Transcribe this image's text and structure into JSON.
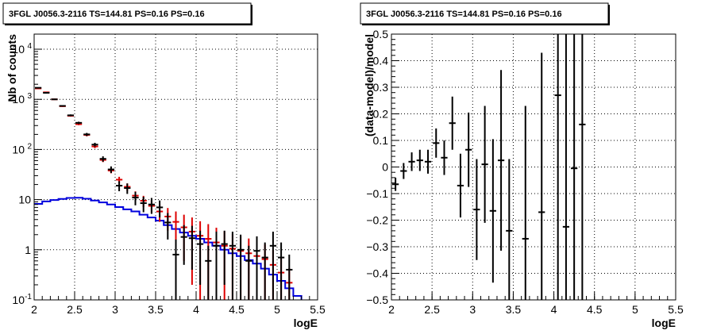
{
  "chart_data": [
    {
      "type": "histogram",
      "title": "3FGL J0056.3-2116 TS=144.81 PS=0.16 PS=0.16",
      "xlabel": "logE",
      "ylabel": "Nb of counts",
      "xlim": [
        2,
        5.5
      ],
      "ylim": [
        0.1,
        20000
      ],
      "y_scale": "log",
      "grid": true,
      "x_ticks": [
        "2",
        "2.5",
        "3",
        "3.5",
        "4",
        "4.5",
        "5",
        "5.5"
      ],
      "y_ticks": [
        {
          "value": 0.1,
          "label": "10",
          "sup": "-1"
        },
        {
          "value": 1,
          "label": "1",
          "sup": ""
        },
        {
          "value": 10,
          "label": "10",
          "sup": ""
        },
        {
          "value": 100,
          "label": "10",
          "sup": "2"
        },
        {
          "value": 1000,
          "label": "10",
          "sup": "3"
        },
        {
          "value": 10000,
          "label": "10",
          "sup": "4"
        }
      ],
      "bin_width": 0.1,
      "series": [
        {
          "role": "data",
          "color": "#000000",
          "x": [
            2.05,
            2.15,
            2.25,
            2.35,
            2.45,
            2.55,
            2.65,
            2.75,
            2.85,
            2.95,
            3.05,
            3.15,
            3.25,
            3.35,
            3.45,
            3.55,
            3.65,
            3.75,
            3.85,
            3.95,
            4.05,
            4.15,
            4.25,
            4.35,
            4.45,
            4.55,
            4.65,
            4.75,
            4.85,
            4.95,
            5.05,
            5.15
          ],
          "y": [
            1700,
            1350,
            1000,
            740,
            480,
            340,
            200,
            125,
            65,
            40,
            19,
            17,
            11,
            8.5,
            8,
            7,
            3.5,
            0.8,
            1.8,
            1.7,
            1.3,
            0.6,
            1.2,
            1.3,
            1.2,
            1.0,
            0.6,
            0.95,
            0.7,
            1.2,
            0.7,
            0.4
          ],
          "yerr_lo": [
            40,
            35,
            30,
            25,
            20,
            18,
            14,
            11,
            8,
            6,
            4.3,
            4,
            3.3,
            2.9,
            2.8,
            2.6,
            1.9,
            0.8,
            1.3,
            1.3,
            1.1,
            0.6,
            1.1,
            1.1,
            1.1,
            1.0,
            0.6,
            0.9,
            0.7,
            1.1,
            0.7,
            0.4
          ],
          "yerr_hi": [
            40,
            35,
            30,
            25,
            20,
            18,
            14,
            11,
            8,
            6,
            4.3,
            4,
            3.3,
            2.9,
            2.8,
            2.6,
            1.9,
            0.8,
            1.3,
            1.3,
            1.1,
            0.6,
            1.1,
            1.1,
            1.1,
            1.0,
            0.6,
            0.9,
            0.7,
            1.1,
            0.7,
            0.4
          ]
        },
        {
          "role": "model-total",
          "color": "#dd0000",
          "x": [
            2.05,
            2.15,
            2.25,
            2.35,
            2.45,
            2.55,
            2.65,
            2.75,
            2.85,
            2.95,
            3.05,
            3.15,
            3.25,
            3.35,
            3.45,
            3.55,
            3.65,
            3.75,
            3.85,
            3.95,
            4.05,
            4.15,
            4.25,
            4.35,
            4.45,
            4.55,
            4.65,
            4.75,
            4.85,
            4.95,
            5.05,
            5.15
          ],
          "y": [
            1650,
            1380,
            1000,
            730,
            470,
            320,
            195,
            115,
            62,
            38,
            25,
            18,
            12,
            9.5,
            7.5,
            5.8,
            4.6,
            3.6,
            2.8,
            2.3,
            1.9,
            1.65,
            1.4,
            1.2,
            1.05,
            0.95,
            0.85,
            0.75,
            0.65,
            0.5,
            0.35,
            0.22
          ],
          "yerr_lo": [
            35,
            30,
            25,
            22,
            18,
            15,
            12,
            9,
            6,
            4.5,
            3.5,
            3,
            2.6,
            2.4,
            2.2,
            2.2,
            2.2,
            2.2,
            2.2,
            2.1,
            1.8,
            1.6,
            1.35,
            1.15,
            1.0,
            0.92,
            0.83,
            0.73,
            0.64,
            0.49,
            0.34,
            0.21
          ],
          "yerr_hi": [
            35,
            30,
            25,
            22,
            18,
            15,
            12,
            9,
            6,
            4.5,
            3.5,
            3,
            2.6,
            2.4,
            2.2,
            2.2,
            2.2,
            2.2,
            2.2,
            2.1,
            1.8,
            1.6,
            1.35,
            1.15,
            1.0,
            0.92,
            0.83,
            0.73,
            0.64,
            0.49,
            0.34,
            0.21
          ]
        },
        {
          "role": "model-source",
          "color": "#0000dd",
          "x": [
            2.05,
            2.15,
            2.25,
            2.35,
            2.45,
            2.55,
            2.65,
            2.75,
            2.85,
            2.95,
            3.05,
            3.15,
            3.25,
            3.35,
            3.45,
            3.55,
            3.65,
            3.75,
            3.85,
            3.95,
            4.05,
            4.15,
            4.25,
            4.35,
            4.45,
            4.55,
            4.65,
            4.75,
            4.85,
            4.95,
            5.05,
            5.15,
            5.25
          ],
          "y": [
            8.2,
            9.2,
            9.8,
            10.3,
            10.8,
            10.9,
            10.4,
            9.6,
            8.8,
            8.0,
            7.1,
            6.4,
            5.8,
            5.0,
            4.4,
            3.8,
            3.1,
            2.6,
            2.2,
            1.9,
            1.65,
            1.4,
            1.2,
            1.0,
            0.85,
            0.75,
            0.62,
            0.53,
            0.42,
            0.32,
            0.24,
            0.17,
            0.12
          ]
        }
      ]
    },
    {
      "type": "scatter",
      "title": "3FGL J0056.3-2116 TS=144.81 PS=0.16 PS=0.16",
      "xlabel": "logE",
      "ylabel": "(data-model)/model",
      "xlim": [
        2,
        5.5
      ],
      "ylim": [
        -0.5,
        0.5
      ],
      "grid": true,
      "x_ticks": [
        "2",
        "2.5",
        "3",
        "3.5",
        "4",
        "4.5",
        "5",
        "5.5"
      ],
      "y_ticks": [
        "-0.5",
        "-0.4",
        "-0.3",
        "-0.2",
        "-0.1",
        "0",
        "0.1",
        "0.2",
        "0.3",
        "0.4",
        "0.5"
      ],
      "bin_width": 0.1,
      "series": [
        {
          "color": "#000000",
          "x": [
            2.05,
            2.15,
            2.25,
            2.35,
            2.45,
            2.55,
            2.65,
            2.75,
            2.85,
            2.95,
            3.05,
            3.15,
            3.25,
            3.35,
            3.45,
            3.65,
            3.85,
            4.05,
            4.15,
            4.25,
            4.35
          ],
          "y": [
            -0.065,
            -0.015,
            0.02,
            0.025,
            0.02,
            0.09,
            0.035,
            0.165,
            -0.07,
            0.065,
            -0.16,
            0.01,
            -0.165,
            0.025,
            -0.24,
            -0.27,
            -0.17,
            0.27,
            -0.225,
            -0.005,
            0.16
          ],
          "yerr": [
            0.025,
            0.03,
            0.035,
            0.04,
            0.045,
            0.055,
            0.065,
            0.1,
            0.12,
            0.14,
            0.19,
            0.22,
            0.27,
            0.34,
            0.27,
            0.5,
            0.6,
            0.9,
            0.9,
            0.9,
            0.9
          ]
        }
      ]
    }
  ]
}
